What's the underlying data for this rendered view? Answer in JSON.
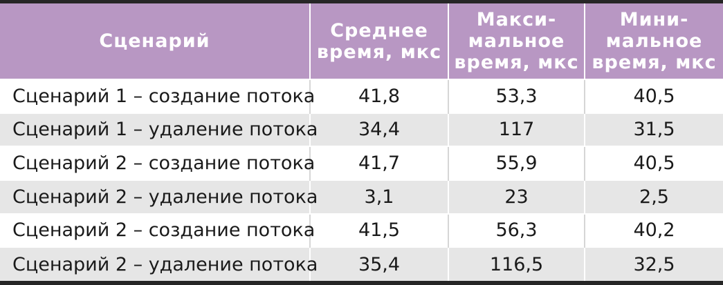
{
  "table": {
    "headers": [
      {
        "lines": [
          "Сценарий"
        ]
      },
      {
        "lines": [
          "Среднее",
          "время, мкс"
        ]
      },
      {
        "lines": [
          "Макси-",
          "мальное",
          "время, мкс"
        ]
      },
      {
        "lines": [
          "Мини-",
          "мальное",
          "время, мкс"
        ]
      }
    ],
    "rows": [
      [
        "Сценарий 1 – создание потока",
        "41,8",
        "53,3",
        "40,5"
      ],
      [
        "Сценарий 1 – удаление потока",
        "34,4",
        "117",
        "31,5"
      ],
      [
        "Сценарий 2 – создание потока",
        "41,7",
        "55,9",
        "40,5"
      ],
      [
        "Сценарий 2 – удаление потока",
        "3,1",
        "23",
        "2,5"
      ],
      [
        "Сценарий 2 – создание потока",
        "41,5",
        "56,3",
        "40,2"
      ],
      [
        "Сценарий 2 – удаление потока",
        "35,4",
        "116,5",
        "32,5"
      ]
    ]
  },
  "colors": {
    "header_bg": "#b897c3",
    "header_text": "#ffffff",
    "row_alt_bg": "#e6e6e6",
    "rule": "#262626"
  }
}
